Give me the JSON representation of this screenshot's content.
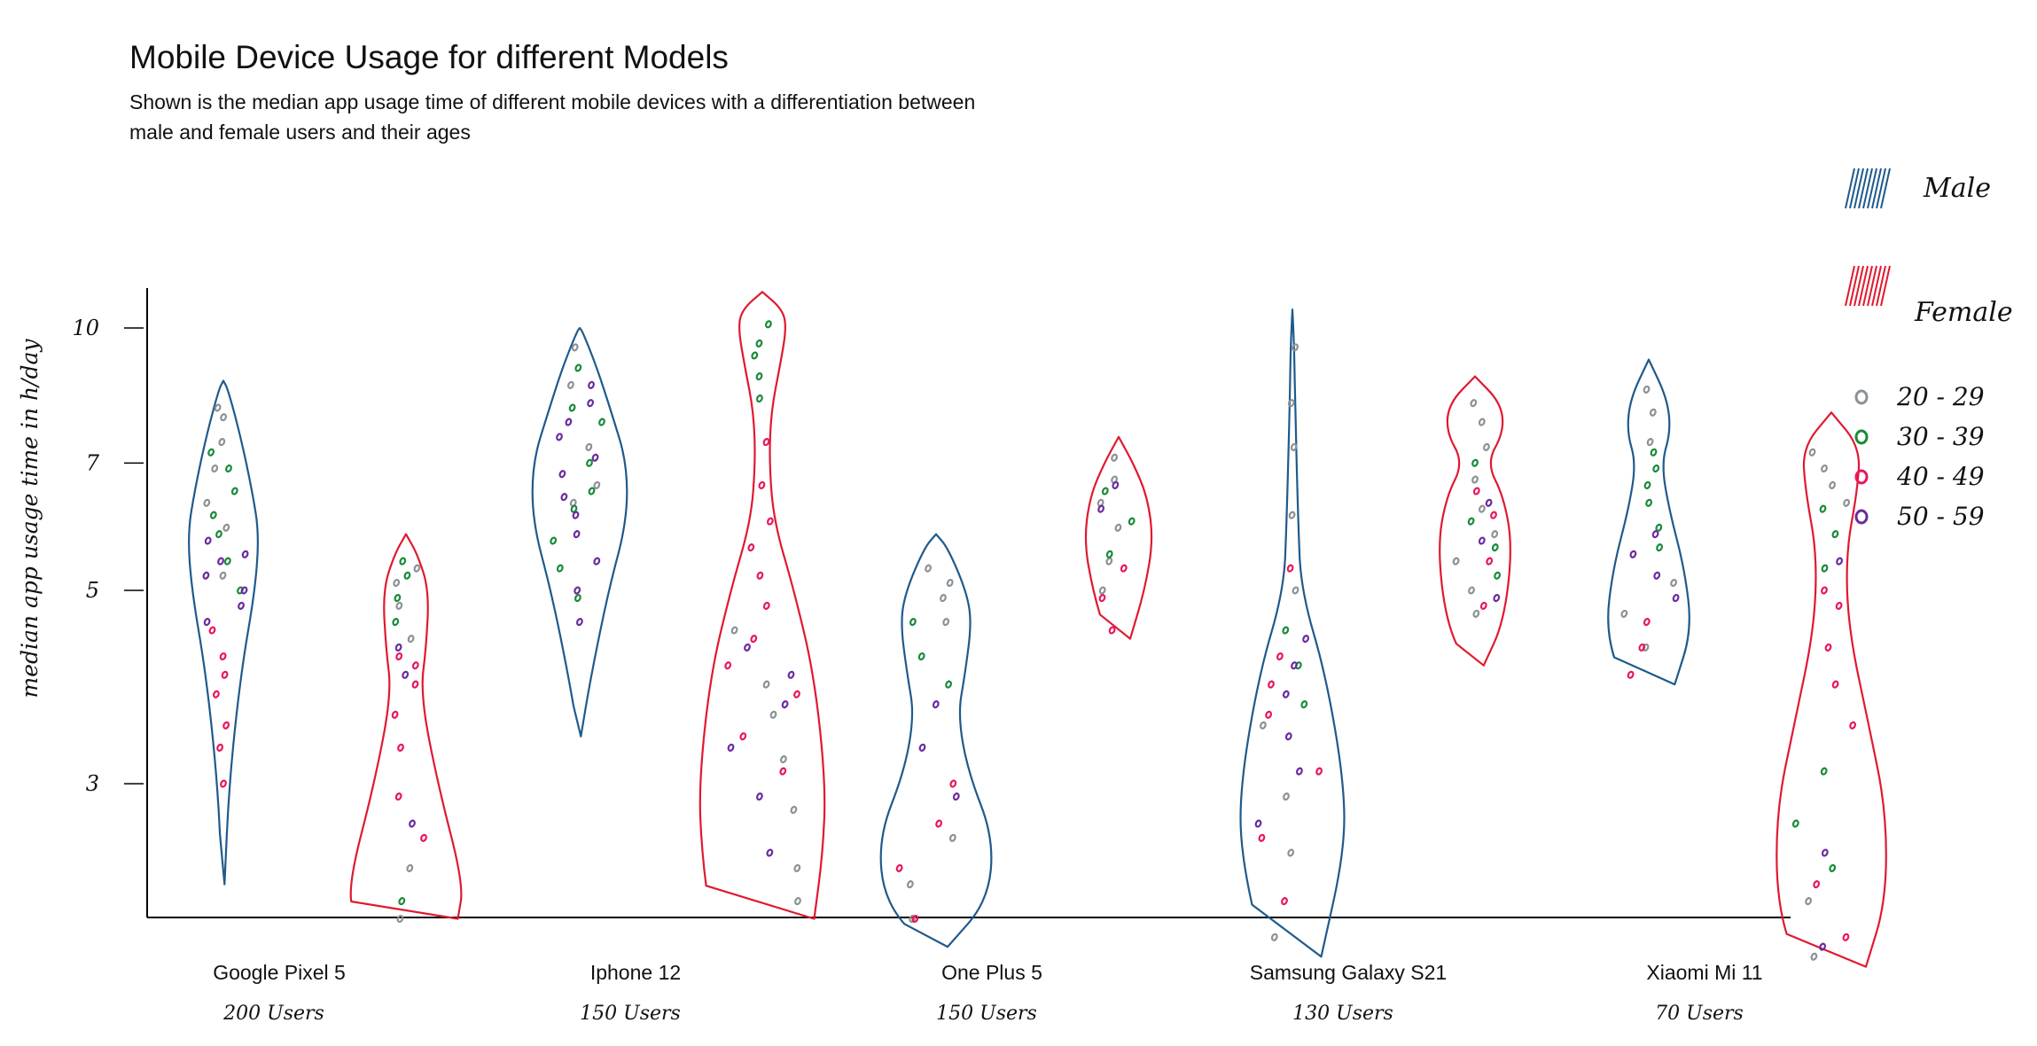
{
  "title": "Mobile Device Usage for different Models",
  "subtitle": "Shown is the median app usage time of different mobile devices with a differentiation between male and female users and their ages",
  "colors": {
    "male": "#1f5a8c",
    "female": "#e0192f",
    "age_20_29": "#8c9196",
    "age_30_39": "#1a8a3a",
    "age_40_49": "#e8175d",
    "age_50_59": "#6a2c9e",
    "axis": "#000000"
  },
  "chart_data": {
    "type": "violin",
    "title": "Mobile Device Usage for different Models",
    "ylabel": "median app usage time in h/day",
    "xlabel": "",
    "yticks": [
      3,
      5,
      7,
      10
    ],
    "ylim": [
      1.8,
      11
    ],
    "grid": false,
    "legend_position": "right",
    "legend": {
      "series": [
        "Male",
        "Female"
      ],
      "age_groups": [
        "20 - 29",
        "30 - 39",
        "40 - 49",
        "50 - 59"
      ]
    },
    "categories": [
      {
        "name": "Google Pixel 5",
        "users": "200 Users"
      },
      {
        "name": "Iphone 12",
        "users": "150 Users"
      },
      {
        "name": "One Plus 5",
        "users": "150 Users"
      },
      {
        "name": "Samsung Galaxy S21",
        "users": "130 Users"
      },
      {
        "name": "Xiaomi Mi 11",
        "users": "70 Users"
      }
    ],
    "series": [
      {
        "name": "Male",
        "violins": [
          {
            "category": "Google Pixel 5",
            "profile": [
              [
                2.3,
                0.02
              ],
              [
                3,
                0.1
              ],
              [
                4,
                0.3
              ],
              [
                5,
                0.55
              ],
              [
                5.8,
                0.62
              ],
              [
                6.5,
                0.5
              ],
              [
                7.5,
                0.3
              ],
              [
                8.5,
                0.08
              ],
              [
                8.7,
                0.0
              ]
            ]
          },
          {
            "category": "Iphone 12",
            "profile": [
              [
                3.4,
                0.02
              ],
              [
                4,
                0.2
              ],
              [
                5,
                0.5
              ],
              [
                6,
                0.82
              ],
              [
                7,
                0.82
              ],
              [
                8,
                0.55
              ],
              [
                9,
                0.3
              ],
              [
                9.9,
                0.05
              ],
              [
                10,
                0.0
              ]
            ]
          },
          {
            "category": "One Plus 5",
            "profile": [
              [
                1.95,
                0.2
              ],
              [
                2.2,
                0.9
              ],
              [
                2.6,
                1.0
              ],
              [
                3.1,
                0.55
              ],
              [
                3.6,
                0.38
              ],
              [
                4,
                0.5
              ],
              [
                4.6,
                0.62
              ],
              [
                5,
                0.52
              ],
              [
                5.6,
                0.2
              ],
              [
                5.8,
                0.0
              ]
            ]
          },
          {
            "category": "Samsung Galaxy S21",
            "profile": [
              [
                1.9,
                0.5
              ],
              [
                2.5,
                0.9
              ],
              [
                3,
                0.9
              ],
              [
                4,
                0.58
              ],
              [
                5,
                0.15
              ],
              [
                6,
                0.1
              ],
              [
                8,
                0.05
              ],
              [
                9.5,
                0.03
              ],
              [
                10.5,
                0.0
              ]
            ]
          },
          {
            "category": "Xiaomi Mi 11",
            "profile": [
              [
                3.9,
                0.45
              ],
              [
                4.5,
                0.75
              ],
              [
                5.3,
                0.62
              ],
              [
                6.2,
                0.35
              ],
              [
                7,
                0.22
              ],
              [
                7.6,
                0.38
              ],
              [
                8.3,
                0.32
              ],
              [
                9.2,
                0.0
              ]
            ]
          }
        ]
      },
      {
        "name": "Female",
        "violins": [
          {
            "category": "Google Pixel 5",
            "profile": [
              [
                2.1,
                0.9
              ],
              [
                2.3,
                1.0
              ],
              [
                3,
                0.55
              ],
              [
                3.8,
                0.25
              ],
              [
                4.3,
                0.35
              ],
              [
                5,
                0.4
              ],
              [
                5.5,
                0.2
              ],
              [
                5.8,
                0.0
              ]
            ]
          },
          {
            "category": "Iphone 12",
            "profile": [
              [
                2.1,
                0.9
              ],
              [
                2.5,
                1.05
              ],
              [
                3,
                1.1
              ],
              [
                4,
                0.9
              ],
              [
                5,
                0.55
              ],
              [
                6,
                0.2
              ],
              [
                7,
                0.12
              ],
              [
                8,
                0.15
              ],
              [
                9,
                0.3
              ],
              [
                10,
                0.42
              ],
              [
                10.5,
                0.35
              ],
              [
                11,
                0.0
              ]
            ]
          },
          {
            "category": "One Plus 5",
            "profile": [
              [
                4.4,
                0.2
              ],
              [
                5,
                0.45
              ],
              [
                5.7,
                0.6
              ],
              [
                6.4,
                0.5
              ],
              [
                7,
                0.25
              ],
              [
                7.5,
                0.0
              ]
            ]
          },
          {
            "category": "Samsung Galaxy S21",
            "profile": [
              [
                4.1,
                0.15
              ],
              [
                4.6,
                0.5
              ],
              [
                5.6,
                0.65
              ],
              [
                6.4,
                0.5
              ],
              [
                7,
                0.2
              ],
              [
                7.6,
                0.5
              ],
              [
                8.2,
                0.45
              ],
              [
                8.8,
                0.0
              ]
            ]
          },
          {
            "category": "Xiaomi Mi 11",
            "profile": [
              [
                1.85,
                0.6
              ],
              [
                2.2,
                0.95
              ],
              [
                2.8,
                0.95
              ],
              [
                3.5,
                0.65
              ],
              [
                4.5,
                0.3
              ],
              [
                5.5,
                0.25
              ],
              [
                6.5,
                0.45
              ],
              [
                7.3,
                0.5
              ],
              [
                8,
                0.0
              ]
            ]
          }
        ]
      }
    ],
    "age_points": [
      {
        "category": "Google Pixel 5",
        "series": "Male",
        "20-29": [
          5.2,
          5.9,
          6.3,
          6.9,
          7.4,
          7.9,
          8.1
        ],
        "30-39": [
          5.0,
          5.4,
          5.8,
          6.1,
          6.5,
          6.9,
          7.2
        ],
        "40-49": [
          3.0,
          3.3,
          3.5,
          3.8,
          4.0,
          4.2,
          4.5
        ],
        "50-59": [
          4.6,
          4.8,
          5.0,
          5.2,
          5.4,
          5.5,
          5.7
        ]
      },
      {
        "category": "Google Pixel 5",
        "series": "Female",
        "20-29": [
          2.1,
          2.4,
          4.4,
          4.8,
          5.1,
          5.3
        ],
        "30-39": [
          2.2,
          4.9,
          5.2,
          5.4,
          4.6
        ],
        "40-49": [
          2.6,
          2.9,
          3.3,
          3.6,
          3.9,
          4.2,
          4.1
        ],
        "50-59": [
          4.0,
          4.3,
          2.7
        ]
      },
      {
        "category": "Iphone 12",
        "series": "Male",
        "20-29": [
          6.3,
          6.6,
          7.3,
          9.5,
          8.6
        ],
        "30-39": [
          4.9,
          5.3,
          5.7,
          6.2,
          6.5,
          7.0,
          7.8,
          8.1,
          9.0
        ],
        "40-49": [],
        "50-59": [
          4.6,
          5.0,
          5.4,
          5.8,
          6.1,
          6.4,
          6.8,
          7.1,
          7.5,
          7.8,
          8.2,
          8.6
        ]
      },
      {
        "category": "Iphone 12",
        "series": "Female",
        "20-29": [
          2.2,
          2.4,
          2.8,
          3.2,
          3.6,
          3.9,
          4.5
        ],
        "30-39": [
          8.3,
          8.8,
          9.3,
          9.6,
          10.1
        ],
        "40-49": [
          3.1,
          3.4,
          3.8,
          4.1,
          4.4,
          4.8,
          5.2,
          5.6,
          6.0,
          6.6,
          7.4
        ],
        "50-59": [
          2.5,
          2.9,
          3.3,
          3.7,
          4.0,
          4.3
        ]
      },
      {
        "category": "One Plus 5",
        "series": "Male",
        "20-29": [
          2.1,
          2.3,
          2.6,
          4.6,
          4.9,
          5.1,
          5.3
        ],
        "30-39": [
          3.9,
          4.2,
          4.6
        ],
        "40-49": [
          2.1,
          2.4,
          2.7,
          3.0
        ],
        "50-59": [
          2.9,
          3.3,
          3.7
        ]
      },
      {
        "category": "One Plus 5",
        "series": "Female",
        "20-29": [
          5.0,
          5.4,
          5.9,
          6.3,
          6.7,
          7.1
        ],
        "30-39": [
          5.5,
          6.0,
          6.5
        ],
        "40-49": [
          4.5,
          4.9,
          5.3
        ],
        "50-59": [
          6.2,
          6.6
        ]
      },
      {
        "category": "Samsung Galaxy S21",
        "series": "Male",
        "20-29": [
          2.0,
          2.5,
          2.9,
          3.5,
          5.0,
          6.1,
          7.3,
          8.2,
          9.5
        ],
        "30-39": [
          3.7,
          4.1,
          4.5
        ],
        "40-49": [
          2.2,
          2.6,
          3.1,
          3.6,
          3.9,
          4.2,
          5.3
        ],
        "50-59": [
          2.7,
          3.1,
          3.4,
          3.8,
          4.1,
          4.4
        ]
      },
      {
        "category": "Samsung Galaxy S21",
        "series": "Female",
        "20-29": [
          4.7,
          5.0,
          5.4,
          5.8,
          6.2,
          6.7,
          7.3,
          7.8,
          8.2
        ],
        "30-39": [
          5.2,
          5.6,
          6.0,
          7.0
        ],
        "40-49": [
          4.8,
          5.4,
          6.1,
          6.5
        ],
        "50-59": [
          4.9,
          5.7,
          6.3
        ]
      },
      {
        "category": "Xiaomi Mi 11",
        "series": "Male",
        "20-29": [
          4.3,
          4.7,
          5.1,
          7.4,
          8.0,
          8.5
        ],
        "30-39": [
          5.6,
          5.9,
          6.3,
          6.6,
          6.9,
          7.2
        ],
        "40-49": [
          4.0,
          4.3,
          4.6
        ],
        "50-59": [
          4.9,
          5.2,
          5.5,
          5.8
        ]
      },
      {
        "category": "Xiaomi Mi 11",
        "series": "Female",
        "20-29": [
          1.9,
          2.2,
          6.6,
          6.9,
          7.2,
          6.3
        ],
        "30-39": [
          2.4,
          2.7,
          3.1,
          5.3,
          5.8,
          6.2
        ],
        "40-49": [
          2.0,
          2.3,
          3.5,
          3.9,
          4.3,
          4.8,
          5.0
        ],
        "50-59": [
          1.95,
          2.5,
          5.4
        ]
      }
    ]
  },
  "legend": {
    "male_label": "Male",
    "female_label": "Female",
    "age_labels": [
      "20 - 29",
      "30 - 39",
      "40 - 49",
      "50 - 59"
    ]
  }
}
